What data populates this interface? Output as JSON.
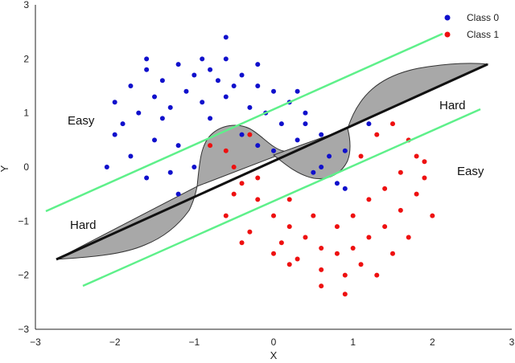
{
  "chart_data": {
    "type": "scatter",
    "title": "",
    "xlabel": "X",
    "ylabel": "Y",
    "xlim": [
      -3,
      3
    ],
    "ylim": [
      -3,
      3
    ],
    "xticks": [
      "−3",
      "−2",
      "−1",
      "0",
      "1",
      "2",
      "3"
    ],
    "yticks": [
      "3",
      "2",
      "1",
      "0",
      "−1",
      "−2",
      "−3"
    ],
    "grid": false,
    "legend_placement": "top-right",
    "series": [
      {
        "name": "Class 0",
        "color": "#1010cc",
        "points": [
          [
            -2.0,
            1.2
          ],
          [
            -1.8,
            1.5
          ],
          [
            -1.6,
            1.8
          ],
          [
            -1.4,
            1.6
          ],
          [
            -1.2,
            1.9
          ],
          [
            -1.0,
            1.7
          ],
          [
            -0.8,
            1.8
          ],
          [
            -0.6,
            2.0
          ],
          [
            -0.4,
            1.7
          ],
          [
            -0.2,
            1.5
          ],
          [
            0.0,
            1.4
          ],
          [
            0.2,
            1.2
          ],
          [
            0.4,
            1.0
          ],
          [
            0.6,
            0.6
          ],
          [
            0.7,
            0.2
          ],
          [
            -2.0,
            0.6
          ],
          [
            -1.8,
            0.2
          ],
          [
            -1.6,
            -0.2
          ],
          [
            -1.4,
            0.9
          ],
          [
            -1.2,
            0.4
          ],
          [
            -1.0,
            0.0
          ],
          [
            -1.2,
            -0.5
          ],
          [
            -0.9,
            1.2
          ],
          [
            -0.6,
            1.3
          ],
          [
            -0.3,
            1.1
          ],
          [
            0.1,
            0.8
          ],
          [
            0.3,
            0.5
          ],
          [
            0.5,
            -0.1
          ],
          [
            0.8,
            -0.3
          ],
          [
            -1.7,
            1.0
          ],
          [
            -1.5,
            1.3
          ],
          [
            -1.3,
            1.1
          ],
          [
            -1.1,
            1.4
          ],
          [
            -0.7,
            1.6
          ],
          [
            -0.5,
            1.5
          ],
          [
            -0.1,
            1.0
          ],
          [
            0.4,
            0.8
          ],
          [
            -1.9,
            0.8
          ],
          [
            -1.5,
            0.5
          ],
          [
            -1.3,
            -0.1
          ],
          [
            -0.8,
            0.9
          ],
          [
            -0.4,
            0.6
          ],
          [
            -0.2,
            0.4
          ],
          [
            0.0,
            0.3
          ],
          [
            0.6,
            0.0
          ],
          [
            0.9,
            0.3
          ],
          [
            -0.6,
            2.4
          ],
          [
            -0.9,
            2.0
          ],
          [
            -1.6,
            2.0
          ],
          [
            -2.1,
            0.0
          ],
          [
            0.3,
            1.4
          ],
          [
            -0.2,
            1.9
          ],
          [
            1.2,
            0.8
          ],
          [
            0.9,
            -0.4
          ]
        ]
      },
      {
        "name": "Class 1",
        "color": "#ee1010",
        "points": [
          [
            -0.6,
            0.3
          ],
          [
            -0.5,
            0.0
          ],
          [
            -0.4,
            -0.3
          ],
          [
            -0.2,
            -0.6
          ],
          [
            0.0,
            -0.9
          ],
          [
            0.2,
            -1.1
          ],
          [
            0.4,
            -1.3
          ],
          [
            0.6,
            -1.5
          ],
          [
            0.8,
            -1.6
          ],
          [
            1.0,
            -1.5
          ],
          [
            1.2,
            -1.3
          ],
          [
            1.4,
            -1.1
          ],
          [
            1.6,
            -0.8
          ],
          [
            1.8,
            -0.5
          ],
          [
            1.9,
            -0.2
          ],
          [
            1.8,
            0.2
          ],
          [
            1.7,
            0.5
          ],
          [
            1.5,
            0.8
          ],
          [
            1.3,
            0.6
          ],
          [
            1.1,
            0.2
          ],
          [
            -0.6,
            -0.9
          ],
          [
            -0.3,
            -1.2
          ],
          [
            0.1,
            -1.4
          ],
          [
            0.3,
            -1.7
          ],
          [
            0.6,
            -1.9
          ],
          [
            0.9,
            -2.0
          ],
          [
            1.1,
            -1.8
          ],
          [
            1.5,
            -1.6
          ],
          [
            1.7,
            -1.3
          ],
          [
            2.0,
            -0.9
          ],
          [
            -0.5,
            -0.5
          ],
          [
            -0.2,
            -0.2
          ],
          [
            0.2,
            -0.6
          ],
          [
            0.5,
            -0.9
          ],
          [
            0.8,
            -1.1
          ],
          [
            1.0,
            -0.9
          ],
          [
            1.2,
            -0.6
          ],
          [
            1.4,
            -0.4
          ],
          [
            1.6,
            -0.1
          ],
          [
            1.9,
            0.1
          ],
          [
            -0.8,
            0.4
          ],
          [
            -0.3,
            0.6
          ],
          [
            0.2,
            -1.8
          ],
          [
            0.6,
            -2.2
          ],
          [
            0.9,
            -2.35
          ],
          [
            1.3,
            -2.0
          ],
          [
            0.0,
            -1.6
          ],
          [
            -0.4,
            -1.4
          ]
        ]
      }
    ],
    "annotations": [
      "Easy",
      "Hard",
      "Hard",
      "Easy"
    ]
  }
}
